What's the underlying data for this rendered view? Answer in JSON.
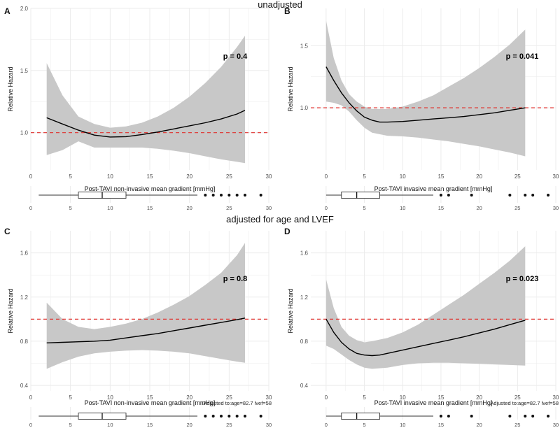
{
  "sections": {
    "top_title": "unadjusted",
    "bottom_title": "adjusted for age and LVEF"
  },
  "colors": {
    "band": "#c8c8c8",
    "line": "#000000",
    "reference": "#e0302c",
    "grid": "#ebebeb",
    "tick_text": "#4d4d4d"
  },
  "chart_data": [
    {
      "panel": "A",
      "type": "line",
      "xlabel": "Post-TAVI non-invasive mean gradient [mmHg]",
      "ylabel": "Relative Hazard",
      "xlim": [
        0,
        30
      ],
      "ylim": [
        0.7,
        2.0
      ],
      "xticks": [
        0,
        5,
        10,
        15,
        20,
        25,
        30
      ],
      "yticks": [
        1.0,
        1.5,
        2.0
      ],
      "ytick_labels": [
        "1.0",
        "1.5",
        "2.0"
      ],
      "reference_line": 1.0,
      "p_label": "p =  0.4",
      "adjustment_note": "",
      "curve": {
        "x": [
          2,
          4,
          6,
          8,
          10,
          12,
          14,
          16,
          18,
          20,
          22,
          24,
          26,
          27
        ],
        "y": [
          1.12,
          1.07,
          1.02,
          0.98,
          0.965,
          0.968,
          0.985,
          1.005,
          1.03,
          1.055,
          1.08,
          1.11,
          1.15,
          1.18
        ]
      },
      "band": {
        "x": [
          2,
          4,
          6,
          8,
          10,
          12,
          14,
          16,
          18,
          20,
          22,
          24,
          26,
          27
        ],
        "lower": [
          0.82,
          0.86,
          0.93,
          0.88,
          0.88,
          0.88,
          0.88,
          0.87,
          0.855,
          0.835,
          0.81,
          0.785,
          0.765,
          0.755
        ],
        "upper": [
          1.56,
          1.3,
          1.13,
          1.07,
          1.04,
          1.05,
          1.08,
          1.13,
          1.2,
          1.29,
          1.4,
          1.53,
          1.69,
          1.78
        ]
      },
      "boxplot": {
        "xlim": [
          0,
          30
        ],
        "xticks": [
          0,
          5,
          10,
          15,
          20,
          25,
          30
        ],
        "min": 1,
        "q1": 6,
        "median": 9,
        "q3": 12,
        "max": 21,
        "outliers": [
          22,
          23,
          24,
          25,
          26,
          27,
          29
        ]
      }
    },
    {
      "panel": "B",
      "type": "line",
      "xlabel": "Post-TAVI invasive mean gradient [mmHg]",
      "ylabel": "Relative Hazard",
      "xlim": [
        -2,
        30
      ],
      "ylim": [
        0.5,
        1.8
      ],
      "xticks": [
        0,
        5,
        10,
        15,
        20,
        25,
        30
      ],
      "yticks": [
        1.0,
        1.5
      ],
      "ytick_labels": [
        "1.0",
        "1.5"
      ],
      "reference_line": 1.0,
      "p_label": "p =  0.041",
      "adjustment_note": "",
      "curve": {
        "x": [
          0,
          1,
          2,
          3,
          4,
          5,
          6,
          7,
          8,
          10,
          12,
          14,
          16,
          18,
          20,
          22,
          24,
          26
        ],
        "y": [
          1.33,
          1.22,
          1.12,
          1.04,
          0.975,
          0.925,
          0.9,
          0.885,
          0.885,
          0.89,
          0.9,
          0.91,
          0.92,
          0.93,
          0.945,
          0.96,
          0.98,
          1.0
        ]
      },
      "band": {
        "x": [
          0,
          1,
          2,
          3,
          4,
          5,
          6,
          8,
          10,
          12,
          14,
          16,
          18,
          20,
          22,
          24,
          26
        ],
        "lower": [
          1.05,
          1.04,
          1.02,
          0.97,
          0.9,
          0.84,
          0.8,
          0.775,
          0.77,
          0.76,
          0.745,
          0.73,
          0.71,
          0.69,
          0.665,
          0.64,
          0.61
        ],
        "upper": [
          1.7,
          1.4,
          1.22,
          1.11,
          1.05,
          1.01,
          0.99,
          0.99,
          1.01,
          1.05,
          1.1,
          1.17,
          1.24,
          1.32,
          1.41,
          1.51,
          1.63
        ]
      },
      "boxplot": {
        "xlim": [
          -2,
          30
        ],
        "xticks": [
          0,
          5,
          10,
          15,
          20,
          25,
          30
        ],
        "min": 0,
        "q1": 2,
        "median": 4,
        "q3": 7,
        "max": 14,
        "outliers": [
          15,
          16,
          19,
          24,
          26,
          27,
          29
        ]
      }
    },
    {
      "panel": "C",
      "type": "line",
      "xlabel": "Post-TAVI  non-invasive mean gradient [mmHg]",
      "ylabel": "Relative Hazard",
      "xlim": [
        0,
        30
      ],
      "ylim": [
        0.35,
        1.8
      ],
      "xticks": [
        0,
        5,
        10,
        15,
        20,
        25,
        30
      ],
      "yticks": [
        0.4,
        0.8,
        1.2,
        1.6
      ],
      "ytick_labels": [
        "0.4",
        "0.8",
        "1.2",
        "1.6"
      ],
      "reference_line": 1.0,
      "p_label": "p =  0.8",
      "adjustment_note": "Adjusted to:age=82.7 lvef=58",
      "curve": {
        "x": [
          2,
          4,
          6,
          8,
          10,
          12,
          14,
          16,
          18,
          20,
          22,
          24,
          26,
          27
        ],
        "y": [
          0.785,
          0.79,
          0.795,
          0.8,
          0.81,
          0.83,
          0.85,
          0.87,
          0.895,
          0.92,
          0.945,
          0.97,
          0.995,
          1.01
        ]
      },
      "band": {
        "x": [
          2,
          4,
          6,
          8,
          10,
          12,
          14,
          16,
          18,
          20,
          22,
          24,
          26,
          27
        ],
        "lower": [
          0.55,
          0.61,
          0.66,
          0.69,
          0.705,
          0.715,
          0.72,
          0.715,
          0.705,
          0.69,
          0.665,
          0.64,
          0.615,
          0.605
        ],
        "upper": [
          1.15,
          1.0,
          0.93,
          0.91,
          0.93,
          0.96,
          1.0,
          1.06,
          1.13,
          1.21,
          1.31,
          1.42,
          1.58,
          1.69
        ]
      },
      "boxplot": {
        "xlim": [
          0,
          30
        ],
        "xticks": [
          0,
          5,
          10,
          15,
          20,
          25,
          30
        ],
        "min": 1,
        "q1": 6,
        "median": 9,
        "q3": 12,
        "max": 21,
        "outliers": [
          22,
          23,
          24,
          25,
          26,
          27,
          29
        ]
      }
    },
    {
      "panel": "D",
      "type": "line",
      "xlabel": "Post-TAVI invasive mean gradient [mmHg]",
      "ylabel": "Relative Hazard",
      "xlim": [
        -2,
        30
      ],
      "ylim": [
        0.35,
        1.8
      ],
      "xticks": [
        0,
        5,
        10,
        15,
        20,
        25,
        30
      ],
      "yticks": [
        0.4,
        0.8,
        1.2,
        1.6
      ],
      "ytick_labels": [
        "0.4",
        "0.8",
        "1.2",
        "1.6"
      ],
      "reference_line": 1.0,
      "p_label": "p =  0.023",
      "adjustment_note": "Adjusted to:age=82.7 lvef=58",
      "curve": {
        "x": [
          0,
          1,
          2,
          3,
          4,
          5,
          6,
          7,
          8,
          10,
          12,
          14,
          16,
          18,
          20,
          22,
          24,
          26
        ],
        "y": [
          1.0,
          0.88,
          0.79,
          0.73,
          0.69,
          0.675,
          0.67,
          0.675,
          0.69,
          0.72,
          0.75,
          0.78,
          0.81,
          0.84,
          0.875,
          0.91,
          0.95,
          0.99
        ]
      },
      "band": {
        "x": [
          0,
          1,
          2,
          3,
          4,
          5,
          6,
          8,
          10,
          12,
          14,
          16,
          18,
          20,
          22,
          24,
          26
        ],
        "lower": [
          0.76,
          0.73,
          0.68,
          0.63,
          0.59,
          0.56,
          0.55,
          0.56,
          0.585,
          0.6,
          0.605,
          0.605,
          0.6,
          0.595,
          0.59,
          0.585,
          0.58
        ],
        "upper": [
          1.36,
          1.1,
          0.93,
          0.85,
          0.81,
          0.79,
          0.8,
          0.83,
          0.88,
          0.95,
          1.04,
          1.13,
          1.22,
          1.32,
          1.42,
          1.53,
          1.66
        ]
      },
      "boxplot": {
        "xlim": [
          -2,
          30
        ],
        "xticks": [
          0,
          5,
          10,
          15,
          20,
          25,
          30
        ],
        "min": 0,
        "q1": 2,
        "median": 4,
        "q3": 7,
        "max": 14,
        "outliers": [
          15,
          16,
          19,
          24,
          26,
          27,
          29
        ]
      }
    }
  ]
}
